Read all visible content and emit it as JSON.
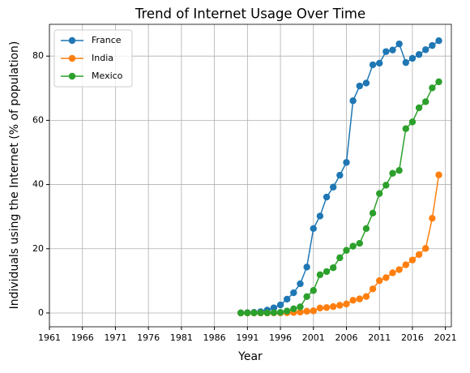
{
  "chart_data": {
    "type": "line",
    "title": "Trend of Internet Usage Over Time",
    "x_label": "Year",
    "y_label": "Individuals using the Internet (% of population)",
    "x": [
      1990,
      1991,
      1992,
      1993,
      1994,
      1995,
      1996,
      1997,
      1998,
      1999,
      2000,
      2001,
      2002,
      2003,
      2004,
      2005,
      2006,
      2007,
      2008,
      2009,
      2010,
      2011,
      2012,
      2013,
      2014,
      2015,
      2016,
      2017,
      2018,
      2019,
      2020
    ],
    "series": [
      {
        "name": "France",
        "color": "#1f77b4",
        "values": [
          0.05,
          0.1,
          0.2,
          0.4,
          0.9,
          1.6,
          2.5,
          4.3,
          6.3,
          9.1,
          14.3,
          26.3,
          30.2,
          36.1,
          39.2,
          42.9,
          46.9,
          66.1,
          70.7,
          71.6,
          77.3,
          77.8,
          81.4,
          81.9,
          83.8,
          78.0,
          79.3,
          80.5,
          82.0,
          83.3,
          84.8
        ]
      },
      {
        "name": "India",
        "color": "#ff7f0e",
        "values": [
          0,
          0,
          0,
          0,
          0,
          0.03,
          0.05,
          0.07,
          0.14,
          0.27,
          0.53,
          0.66,
          1.54,
          1.69,
          1.98,
          2.39,
          2.81,
          3.95,
          4.38,
          5.12,
          7.5,
          10.07,
          11.0,
          12.5,
          13.5,
          15.0,
          16.5,
          18.2,
          20.1,
          29.5,
          43.0
        ]
      },
      {
        "name": "Mexico",
        "color": "#2ca02c",
        "values": [
          0,
          0.01,
          0.03,
          0.04,
          0.04,
          0.1,
          0.19,
          0.6,
          1.3,
          1.9,
          5.1,
          7.0,
          11.9,
          12.9,
          14.1,
          17.2,
          19.5,
          20.8,
          21.7,
          26.3,
          31.1,
          37.2,
          39.8,
          43.5,
          44.4,
          57.4,
          59.5,
          63.9,
          65.8,
          70.1,
          72.0
        ]
      }
    ],
    "xlim": [
      1961,
      2021.9
    ],
    "xticks": [
      1961,
      1966,
      1971,
      1976,
      1981,
      1986,
      1991,
      1996,
      2001,
      2006,
      2011,
      2016,
      2021
    ],
    "ylim": [
      -4.3,
      89.9
    ],
    "yticks": [
      0,
      20,
      40,
      60,
      80
    ],
    "grid": true,
    "legend": "upper-left"
  }
}
